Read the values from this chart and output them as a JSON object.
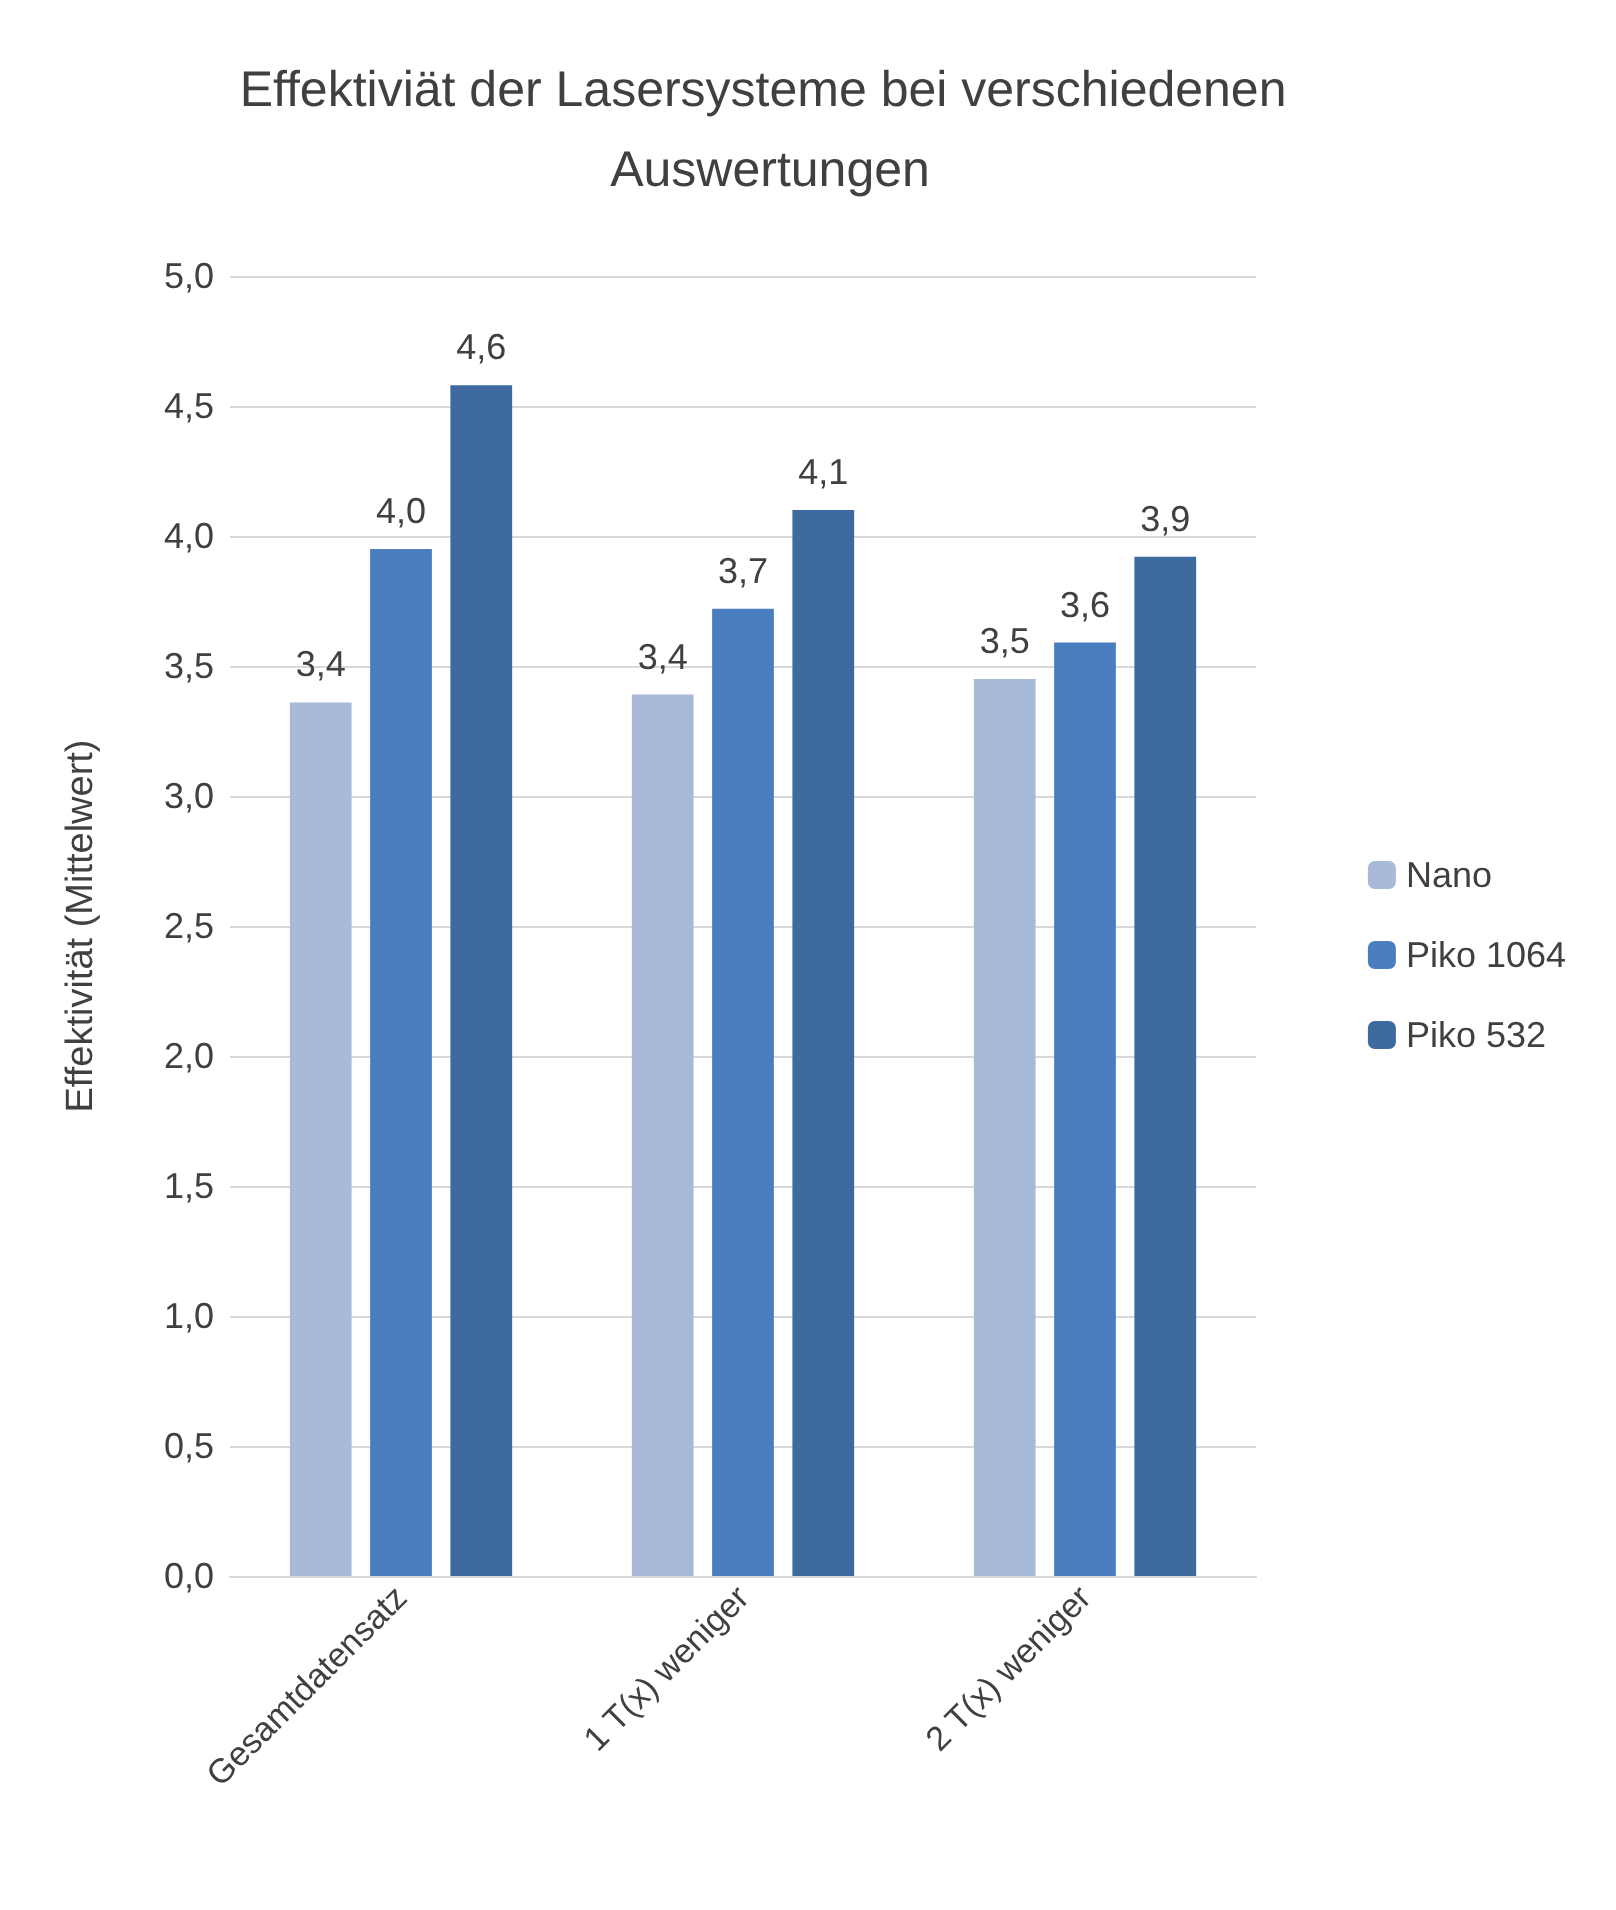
{
  "chart_data": {
    "type": "bar",
    "title": "Effektiviät der Lasersysteme bei verschiedenen Auswertungen",
    "ylabel": "Effektivität (Mittelwert)",
    "categories": [
      "Gesamtdatensatz",
      "1 T(x) weniger",
      "2 T(x) weniger"
    ],
    "series": [
      {
        "name": "Nano",
        "color": "#a9b9d9",
        "values": [
          3.36,
          3.39,
          3.45
        ],
        "value_labels": [
          "3,4",
          "3,4",
          "3,5"
        ]
      },
      {
        "name": "Piko 1064",
        "color": "#4a7ebf",
        "values": [
          3.95,
          3.72,
          3.59
        ],
        "value_labels": [
          "4,0",
          "3,7",
          "3,6"
        ]
      },
      {
        "name": "Piko 532",
        "color": "#3e6aa0",
        "values": [
          4.58,
          4.1,
          3.92
        ],
        "value_labels": [
          "4,6",
          "4,1",
          "3,9"
        ]
      }
    ],
    "ylim": [
      0,
      5
    ],
    "yticks": [
      {
        "value": 0,
        "label": "0,0"
      },
      {
        "value": 0.5,
        "label": "0,5"
      },
      {
        "value": 1,
        "label": "1,0"
      },
      {
        "value": 1.5,
        "label": "1,5"
      },
      {
        "value": 2,
        "label": "2,0"
      },
      {
        "value": 2.5,
        "label": "2,5"
      },
      {
        "value": 3,
        "label": "3,0"
      },
      {
        "value": 3.5,
        "label": "3,5"
      },
      {
        "value": 4,
        "label": "4,0"
      },
      {
        "value": 4.5,
        "label": "4,5"
      },
      {
        "value": 5,
        "label": "5,0"
      }
    ],
    "grid": "y",
    "legend": "right"
  }
}
